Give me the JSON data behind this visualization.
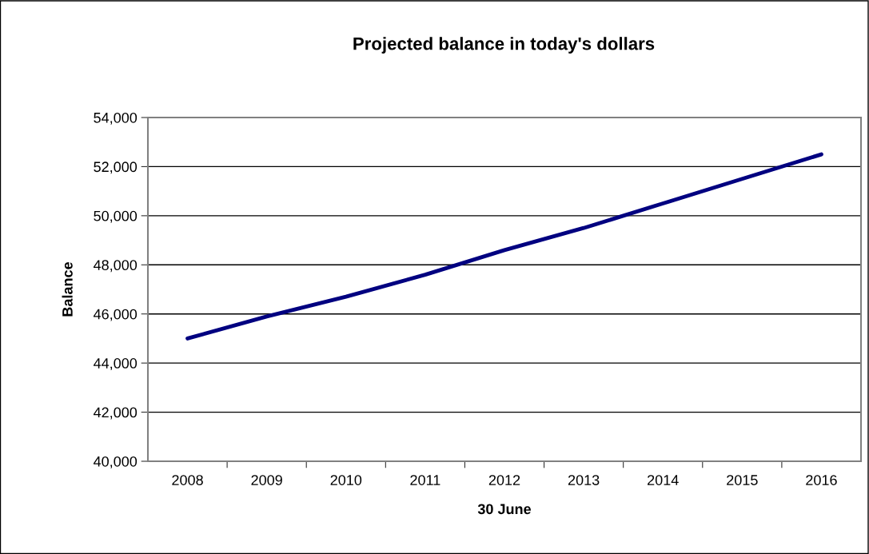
{
  "chart_data": {
    "type": "line",
    "title": "Projected balance in today's dollars",
    "xlabel": "30 June",
    "ylabel": "Balance",
    "categories": [
      "2008",
      "2009",
      "2010",
      "2011",
      "2012",
      "2013",
      "2014",
      "2015",
      "2016"
    ],
    "series": [
      {
        "color": "#000080",
        "values": [
          45000,
          45900,
          46700,
          47600,
          48600,
          49500,
          50500,
          51500,
          52500
        ]
      }
    ],
    "ylim": [
      40000,
      54000
    ],
    "yticks": [
      {
        "value": 40000,
        "label": "40,000"
      },
      {
        "value": 42000,
        "label": "42,000"
      },
      {
        "value": 44000,
        "label": "44,000"
      },
      {
        "value": 46000,
        "label": "46,000"
      },
      {
        "value": 48000,
        "label": "48,000"
      },
      {
        "value": 50000,
        "label": "50,000"
      },
      {
        "value": 52000,
        "label": "52,000"
      },
      {
        "value": 54000,
        "label": "54,000"
      }
    ],
    "grid": "y",
    "marker": "none",
    "line_style": "solid"
  }
}
